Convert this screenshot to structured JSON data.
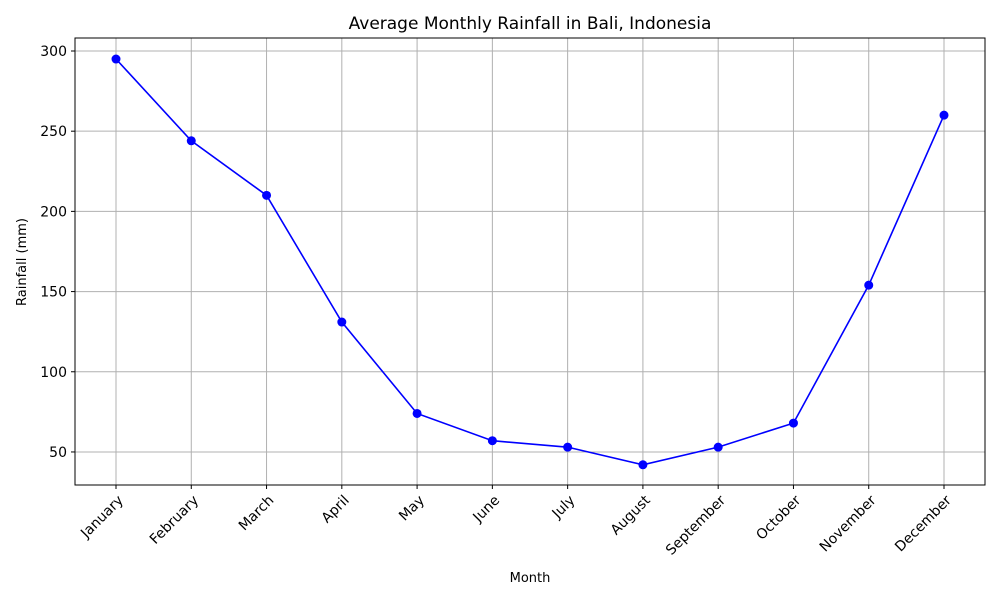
{
  "chart_data": {
    "type": "line",
    "title": "Average Monthly Rainfall in Bali, Indonesia",
    "xlabel": "Month",
    "ylabel": "Rainfall (mm)",
    "categories": [
      "January",
      "February",
      "March",
      "April",
      "May",
      "June",
      "July",
      "August",
      "September",
      "October",
      "November",
      "December"
    ],
    "series": [
      {
        "name": "Rainfall",
        "color": "#0000ff",
        "marker": "circle",
        "values": [
          295,
          244,
          210,
          131,
          74,
          57,
          53,
          42,
          53,
          68,
          154,
          260
        ]
      }
    ],
    "ylim": [
      29.4,
      308.1
    ],
    "yticks": [
      50,
      100,
      150,
      200,
      250,
      300
    ],
    "grid": true,
    "legend": "none"
  }
}
